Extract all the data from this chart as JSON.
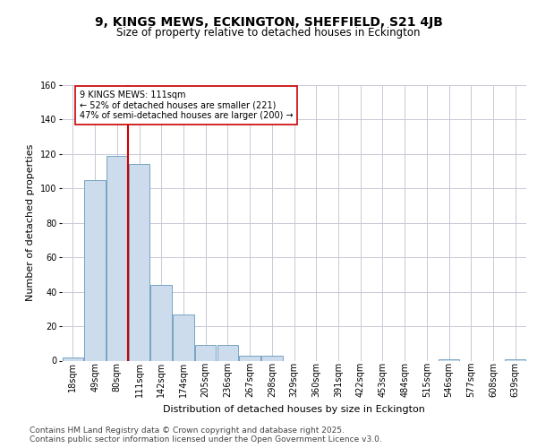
{
  "title": "9, KINGS MEWS, ECKINGTON, SHEFFIELD, S21 4JB",
  "subtitle": "Size of property relative to detached houses in Eckington",
  "xlabel": "Distribution of detached houses by size in Eckington",
  "ylabel": "Number of detached properties",
  "categories": [
    "18sqm",
    "49sqm",
    "80sqm",
    "111sqm",
    "142sqm",
    "174sqm",
    "205sqm",
    "236sqm",
    "267sqm",
    "298sqm",
    "329sqm",
    "360sqm",
    "391sqm",
    "422sqm",
    "453sqm",
    "484sqm",
    "515sqm",
    "546sqm",
    "577sqm",
    "608sqm",
    "639sqm"
  ],
  "values": [
    2,
    105,
    119,
    114,
    44,
    27,
    9,
    9,
    3,
    3,
    0,
    0,
    0,
    0,
    0,
    0,
    0,
    1,
    0,
    0,
    1
  ],
  "bar_color": "#ccdcec",
  "bar_edge_color": "#6699bb",
  "vline_x": 2.5,
  "vline_color": "#cc0000",
  "annotation_text": "9 KINGS MEWS: 111sqm\n← 52% of detached houses are smaller (221)\n47% of semi-detached houses are larger (200) →",
  "annotation_box_color": "#ffffff",
  "annotation_box_edge": "#cc0000",
  "ylim": [
    0,
    160
  ],
  "yticks": [
    0,
    20,
    40,
    60,
    80,
    100,
    120,
    140,
    160
  ],
  "footer": "Contains HM Land Registry data © Crown copyright and database right 2025.\nContains public sector information licensed under the Open Government Licence v3.0.",
  "title_fontsize": 10,
  "subtitle_fontsize": 8.5,
  "axis_label_fontsize": 8,
  "tick_fontsize": 7,
  "annot_fontsize": 7,
  "footer_fontsize": 6.5,
  "background_color": "#ffffff",
  "grid_color": "#c8c8d8"
}
